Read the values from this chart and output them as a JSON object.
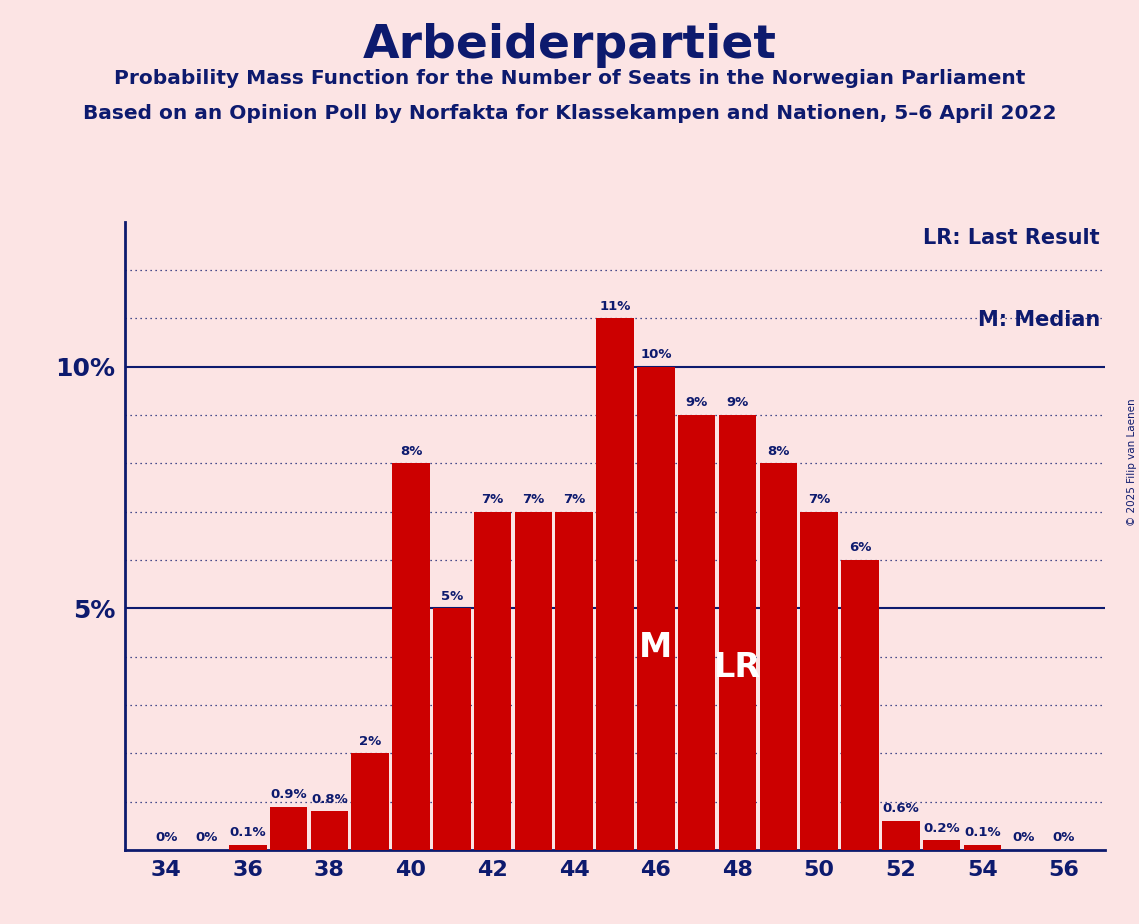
{
  "title": "Arbeiderpartiet",
  "subtitle1": "Probability Mass Function for the Number of Seats in the Norwegian Parliament",
  "subtitle2": "Based on an Opinion Poll by Norfakta for Klassekampen and Nationen, 5–6 April 2022",
  "copyright": "© 2025 Filip van Laenen",
  "seats": [
    34,
    35,
    36,
    37,
    38,
    39,
    40,
    41,
    42,
    43,
    44,
    45,
    46,
    47,
    48,
    49,
    50,
    51,
    52,
    53,
    54,
    55,
    56
  ],
  "values": [
    0.0,
    0.0,
    0.1,
    0.9,
    0.8,
    2.0,
    8.0,
    5.0,
    7.0,
    7.0,
    7.0,
    11.0,
    10.0,
    9.0,
    9.0,
    8.0,
    7.0,
    6.0,
    0.6,
    0.2,
    0.1,
    0.0,
    0.0
  ],
  "labels": [
    "0%",
    "0%",
    "0.1%",
    "0.9%",
    "0.8%",
    "2%",
    "8%",
    "5%",
    "7%",
    "7%",
    "7%",
    "11%",
    "10%",
    "9%",
    "9%",
    "8%",
    "7%",
    "6%",
    "0.6%",
    "0.2%",
    "0.1%",
    "0%",
    "0%"
  ],
  "bar_color": "#cc0000",
  "bg_color": "#fce4e4",
  "title_color": "#0d1a6e",
  "axis_color": "#0d1a6e",
  "grid_color": "#0d1a6e",
  "median_seat": 46,
  "last_result_seat": 48,
  "lr_legend": "LR: Last Result",
  "m_legend": "M: Median",
  "ylim_max": 13.0,
  "solid_lines": [
    5,
    10
  ],
  "dotted_lines": [
    1,
    2,
    3,
    4,
    6,
    7,
    8,
    9,
    11,
    12
  ]
}
